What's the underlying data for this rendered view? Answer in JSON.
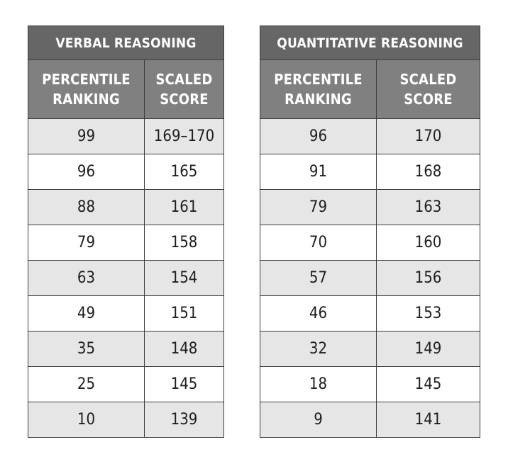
{
  "verbal": {
    "title": "VERBAL REASONING",
    "headers": [
      [
        "PERCENTILE",
        "RANKING"
      ],
      [
        "SCALED",
        "SCORE"
      ]
    ],
    "rows": [
      [
        "99",
        "169–170"
      ],
      [
        "96",
        "165"
      ],
      [
        "88",
        "161"
      ],
      [
        "79",
        "158"
      ],
      [
        "63",
        "154"
      ],
      [
        "49",
        "151"
      ],
      [
        "35",
        "148"
      ],
      [
        "25",
        "145"
      ],
      [
        "10",
        "139"
      ]
    ]
  },
  "quantitative": {
    "title": "QUANTITATIVE REASONING",
    "headers": [
      [
        "PERCENTILE",
        "RANKING"
      ],
      [
        "SCALED",
        "SCORE"
      ]
    ],
    "rows": [
      [
        "96",
        "170"
      ],
      [
        "91",
        "168"
      ],
      [
        "79",
        "163"
      ],
      [
        "70",
        "160"
      ],
      [
        "57",
        "156"
      ],
      [
        "46",
        "153"
      ],
      [
        "32",
        "149"
      ],
      [
        "18",
        "145"
      ],
      [
        "9",
        "141"
      ]
    ]
  },
  "colors": {
    "title_background": "#666666",
    "header_background": "#808080",
    "alternate_row_background": "#e6e6e6",
    "border": "#3c3c3c"
  }
}
